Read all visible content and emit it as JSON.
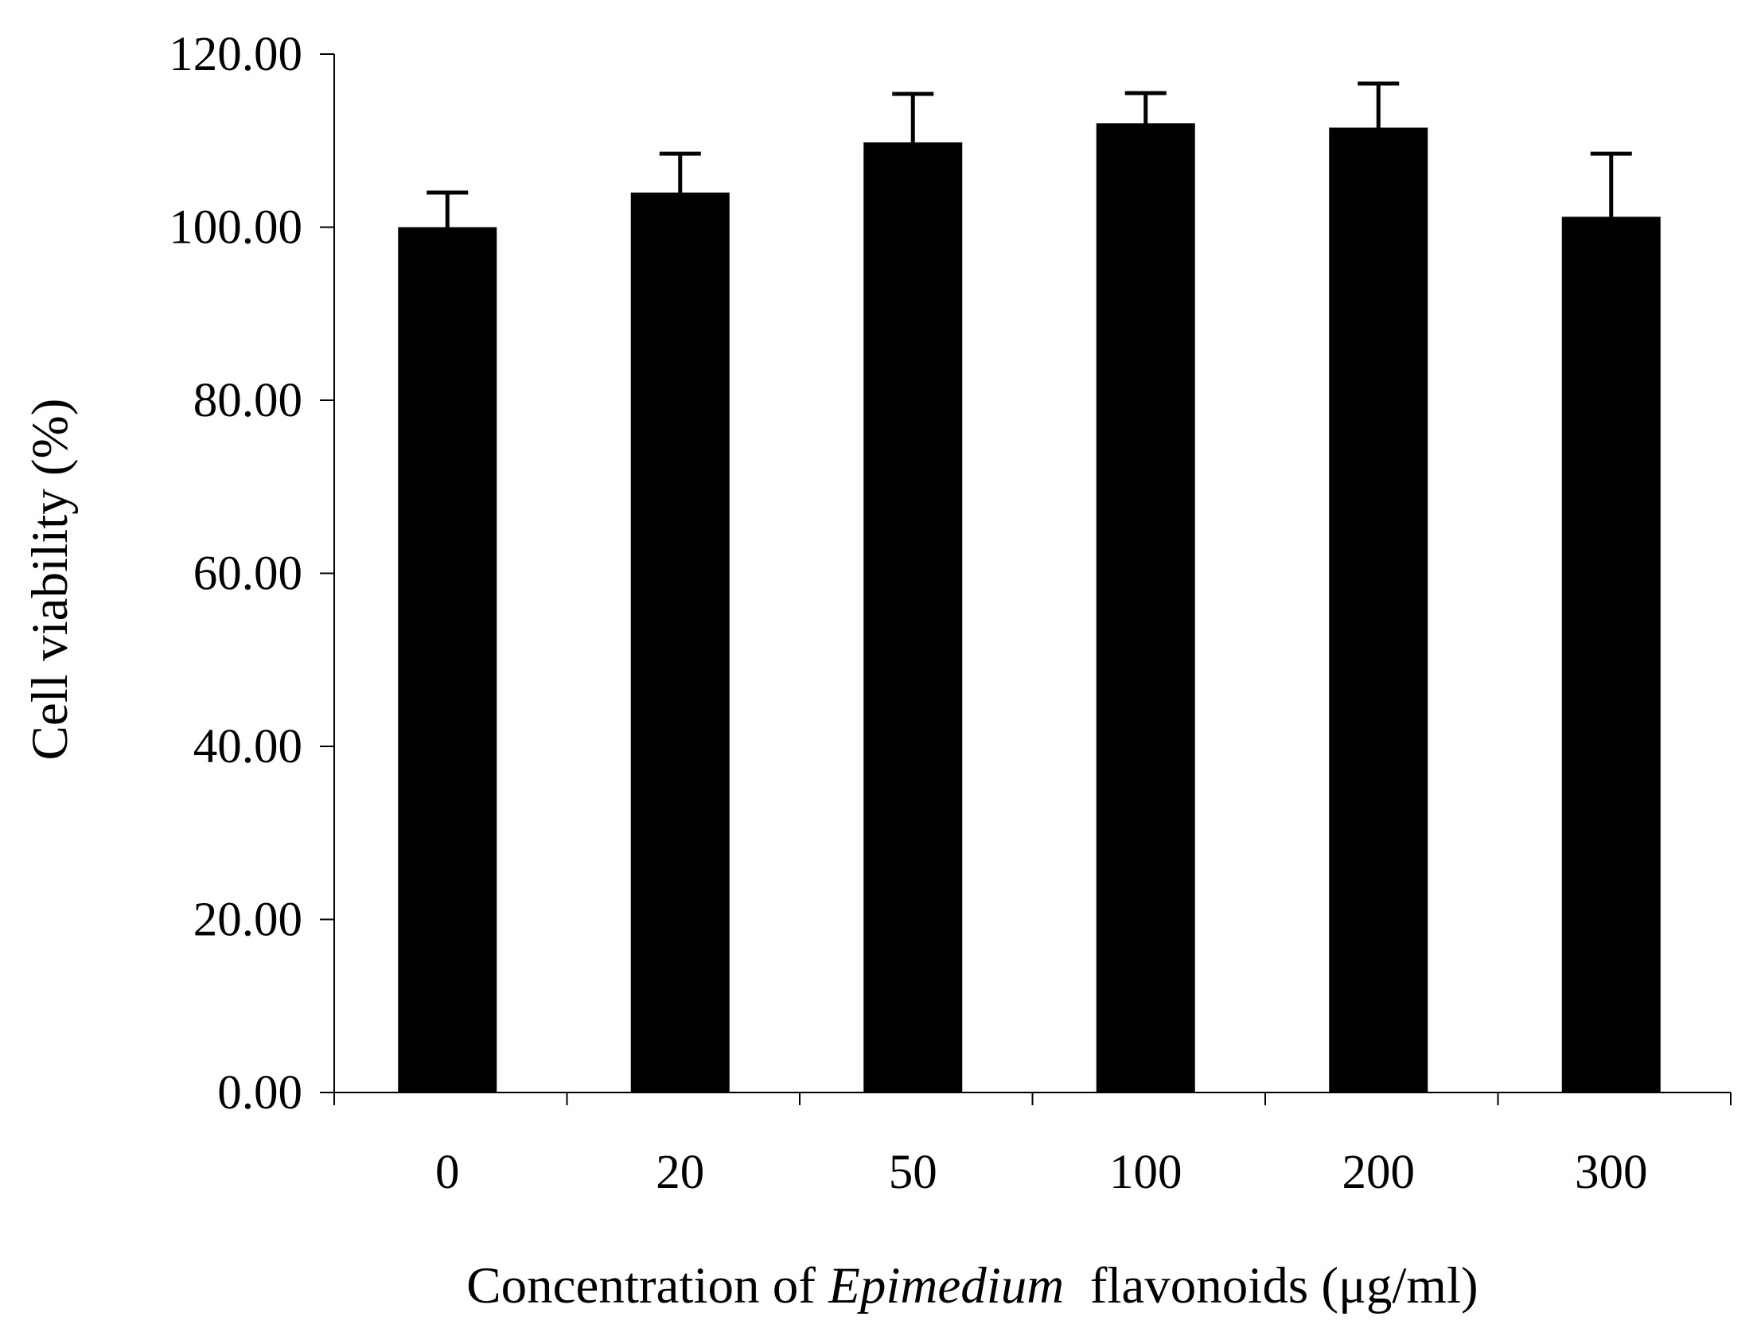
{
  "chart_data": {
    "type": "bar",
    "categories": [
      "0",
      "20",
      "50",
      "100",
      "200",
      "300"
    ],
    "values": [
      100.0,
      104.0,
      109.8,
      112.0,
      111.5,
      101.2
    ],
    "errors": [
      4.0,
      4.5,
      5.6,
      3.5,
      5.1,
      7.3
    ],
    "ylim": [
      0,
      120
    ],
    "yticks": [
      "0.00",
      "20.00",
      "40.00",
      "60.00",
      "80.00",
      "100.00",
      "120.00"
    ],
    "ytick_values": [
      0,
      20,
      40,
      60,
      80,
      100,
      120
    ],
    "ylabel": "Cell viability (%)",
    "xlabel_parts": [
      "Concentration of ",
      "Epimedium",
      "  flavonoids (μg/ml)"
    ],
    "bar_color": "#000000",
    "grid": false,
    "legend": "none"
  }
}
